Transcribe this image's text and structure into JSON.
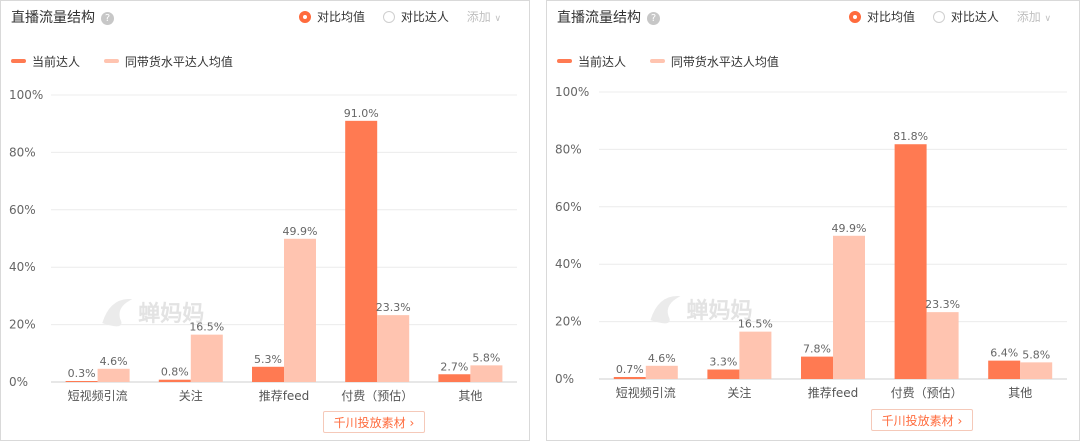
{
  "panels": [
    {
      "title": "直播流量结构",
      "help_icon": "?",
      "options": [
        {
          "label": "对比均值",
          "selected": true
        },
        {
          "label": "对比达人",
          "selected": false
        }
      ],
      "add_label": "添加",
      "legend": [
        {
          "label": "当前达人",
          "color": "#ff7a52"
        },
        {
          "label": "同带货水平达人均值",
          "color": "#ffc4b0"
        }
      ],
      "watermark": "蝉妈妈",
      "button_label": "千川投放素材",
      "chart_data": {
        "type": "bar",
        "categories": [
          "短视频引流",
          "关注",
          "推荐feed",
          "付费（预估）",
          "其他"
        ],
        "series": [
          {
            "name": "当前达人",
            "values": [
              0.3,
              0.8,
              5.3,
              91.0,
              2.7
            ],
            "labels": [
              "0.3%",
              "0.8%",
              "5.3%",
              "91.0%",
              "2.7%"
            ]
          },
          {
            "name": "同带货水平达人均值",
            "values": [
              4.6,
              16.5,
              49.9,
              23.3,
              5.8
            ],
            "labels": [
              "4.6%",
              "16.5%",
              "49.9%",
              "23.3%",
              "5.8%"
            ]
          }
        ],
        "yticks": [
          "0%",
          "20%",
          "40%",
          "60%",
          "80%",
          "100%"
        ],
        "ylim": [
          0,
          100
        ],
        "grid": true,
        "legend_position": "top-left"
      }
    },
    {
      "title": "直播流量结构",
      "help_icon": "?",
      "options": [
        {
          "label": "对比均值",
          "selected": true
        },
        {
          "label": "对比达人",
          "selected": false
        }
      ],
      "add_label": "添加",
      "legend": [
        {
          "label": "当前达人",
          "color": "#ff7a52"
        },
        {
          "label": "同带货水平达人均值",
          "color": "#ffc4b0"
        }
      ],
      "watermark": "蝉妈妈",
      "button_label": "千川投放素材",
      "chart_data": {
        "type": "bar",
        "categories": [
          "短视频引流",
          "关注",
          "推荐feed",
          "付费（预估）",
          "其他"
        ],
        "series": [
          {
            "name": "当前达人",
            "values": [
              0.7,
              3.3,
              7.8,
              81.8,
              6.4
            ],
            "labels": [
              "0.7%",
              "3.3%",
              "7.8%",
              "81.8%",
              "6.4%"
            ]
          },
          {
            "name": "同带货水平达人均值",
            "values": [
              4.6,
              16.5,
              49.9,
              23.3,
              5.8
            ],
            "labels": [
              "4.6%",
              "16.5%",
              "49.9%",
              "23.3%",
              "5.8%"
            ]
          }
        ],
        "yticks": [
          "0%",
          "20%",
          "40%",
          "60%",
          "80%",
          "100%"
        ],
        "ylim": [
          0,
          100
        ],
        "grid": true,
        "legend_position": "top-left"
      }
    }
  ]
}
